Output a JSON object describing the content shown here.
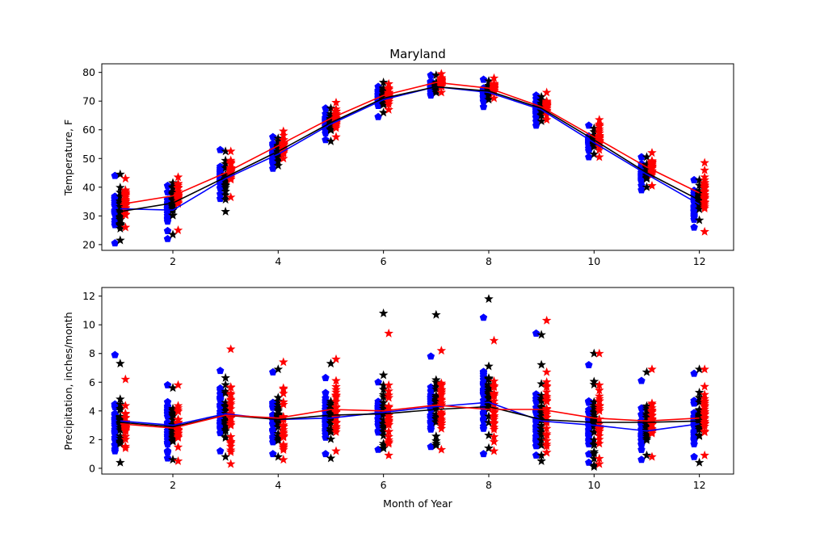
{
  "figure": {
    "title": "Maryland"
  },
  "chart_data": [
    {
      "type": "scatter",
      "title": "Maryland",
      "xlabel": "",
      "ylabel": "Temperature, F",
      "xlim": [
        0.65,
        12.65
      ],
      "ylim": [
        18,
        83
      ],
      "xticks": [
        2,
        4,
        6,
        8,
        10,
        12
      ],
      "yticks": [
        20,
        30,
        40,
        50,
        60,
        70,
        80
      ],
      "months": [
        1,
        2,
        3,
        4,
        5,
        6,
        7,
        8,
        9,
        10,
        11,
        12
      ],
      "series": [
        {
          "name": "blue",
          "color": "#0000ff",
          "marker": "pentagon",
          "offset": -0.1,
          "means": [
            32.5,
            32.0,
            43.0,
            51.5,
            62.0,
            70.5,
            75.0,
            73.0,
            67.0,
            55.5,
            44.5,
            34.0
          ],
          "min": [
            20.5,
            22.0,
            36.0,
            46.5,
            56.5,
            64.5,
            72.0,
            68.0,
            61.5,
            50.5,
            39.0,
            26.0
          ],
          "max": [
            44.0,
            40.5,
            53.0,
            57.5,
            67.5,
            75.0,
            79.0,
            77.5,
            72.0,
            61.5,
            50.5,
            42.5
          ]
        },
        {
          "name": "black",
          "color": "#000000",
          "marker": "star",
          "offset": 0.0,
          "means": [
            31.5,
            34.5,
            43.5,
            52.5,
            62.5,
            71.0,
            75.0,
            73.5,
            67.5,
            56.5,
            45.0,
            35.5
          ],
          "min": [
            21.5,
            23.5,
            31.5,
            47.5,
            56.0,
            66.0,
            73.0,
            70.5,
            63.0,
            51.5,
            40.0,
            28.5
          ],
          "max": [
            44.5,
            41.5,
            52.5,
            57.0,
            67.5,
            76.5,
            79.0,
            77.0,
            71.5,
            60.5,
            50.5,
            42.5
          ]
        },
        {
          "name": "red",
          "color": "#ff0000",
          "marker": "star",
          "offset": 0.1,
          "means": [
            34.0,
            37.0,
            45.0,
            54.5,
            64.0,
            72.0,
            76.5,
            74.5,
            68.0,
            57.5,
            47.0,
            38.0
          ],
          "min": [
            26.0,
            25.0,
            36.5,
            50.0,
            57.5,
            67.0,
            73.0,
            71.0,
            63.5,
            50.5,
            40.5,
            24.5
          ],
          "max": [
            43.0,
            43.5,
            52.5,
            59.5,
            69.5,
            76.0,
            79.5,
            78.0,
            73.0,
            63.5,
            52.0,
            48.5
          ]
        }
      ]
    },
    {
      "type": "scatter",
      "title": "",
      "xlabel": "Month of Year",
      "ylabel": "Precipitation, inches/month",
      "xlim": [
        0.65,
        12.65
      ],
      "ylim": [
        -0.4,
        12.6
      ],
      "xticks": [
        2,
        4,
        6,
        8,
        10,
        12
      ],
      "yticks": [
        0,
        2,
        4,
        6,
        8,
        10,
        12
      ],
      "months": [
        1,
        2,
        3,
        4,
        5,
        6,
        7,
        8,
        9,
        10,
        11,
        12
      ],
      "series": [
        {
          "name": "blue",
          "color": "#0000ff",
          "marker": "pentagon",
          "offset": -0.1,
          "means": [
            3.3,
            3.0,
            3.8,
            3.4,
            3.5,
            3.9,
            4.3,
            4.6,
            3.3,
            3.0,
            2.6,
            3.1
          ],
          "min": [
            1.2,
            0.7,
            1.2,
            1.0,
            1.0,
            1.3,
            1.5,
            1.0,
            0.9,
            0.4,
            0.6,
            0.8
          ],
          "max": [
            7.9,
            5.8,
            6.8,
            6.7,
            6.3,
            6.0,
            7.8,
            10.5,
            9.4,
            7.2,
            6.1,
            6.6
          ]
        },
        {
          "name": "black",
          "color": "#000000",
          "marker": "star",
          "offset": 0.0,
          "means": [
            3.2,
            2.9,
            3.7,
            3.4,
            3.7,
            3.8,
            4.1,
            4.3,
            3.4,
            3.2,
            3.2,
            3.3
          ],
          "min": [
            0.4,
            0.6,
            0.8,
            0.8,
            0.7,
            1.4,
            1.6,
            1.4,
            0.5,
            0.1,
            0.9,
            0.4
          ],
          "max": [
            7.3,
            5.6,
            6.3,
            6.9,
            7.3,
            10.8,
            10.7,
            11.8,
            9.3,
            8.0,
            6.7,
            6.9
          ]
        },
        {
          "name": "red",
          "color": "#ff0000",
          "marker": "star",
          "offset": 0.1,
          "means": [
            3.1,
            2.8,
            3.7,
            3.5,
            4.1,
            4.0,
            4.4,
            4.1,
            4.1,
            3.5,
            3.3,
            3.5
          ],
          "min": [
            1.4,
            0.5,
            0.3,
            0.6,
            1.2,
            0.9,
            1.3,
            1.2,
            1.1,
            0.3,
            0.8,
            0.9
          ],
          "max": [
            6.2,
            5.8,
            8.3,
            7.4,
            7.6,
            9.4,
            8.2,
            8.9,
            10.3,
            8.0,
            6.9,
            6.9
          ]
        }
      ]
    }
  ]
}
